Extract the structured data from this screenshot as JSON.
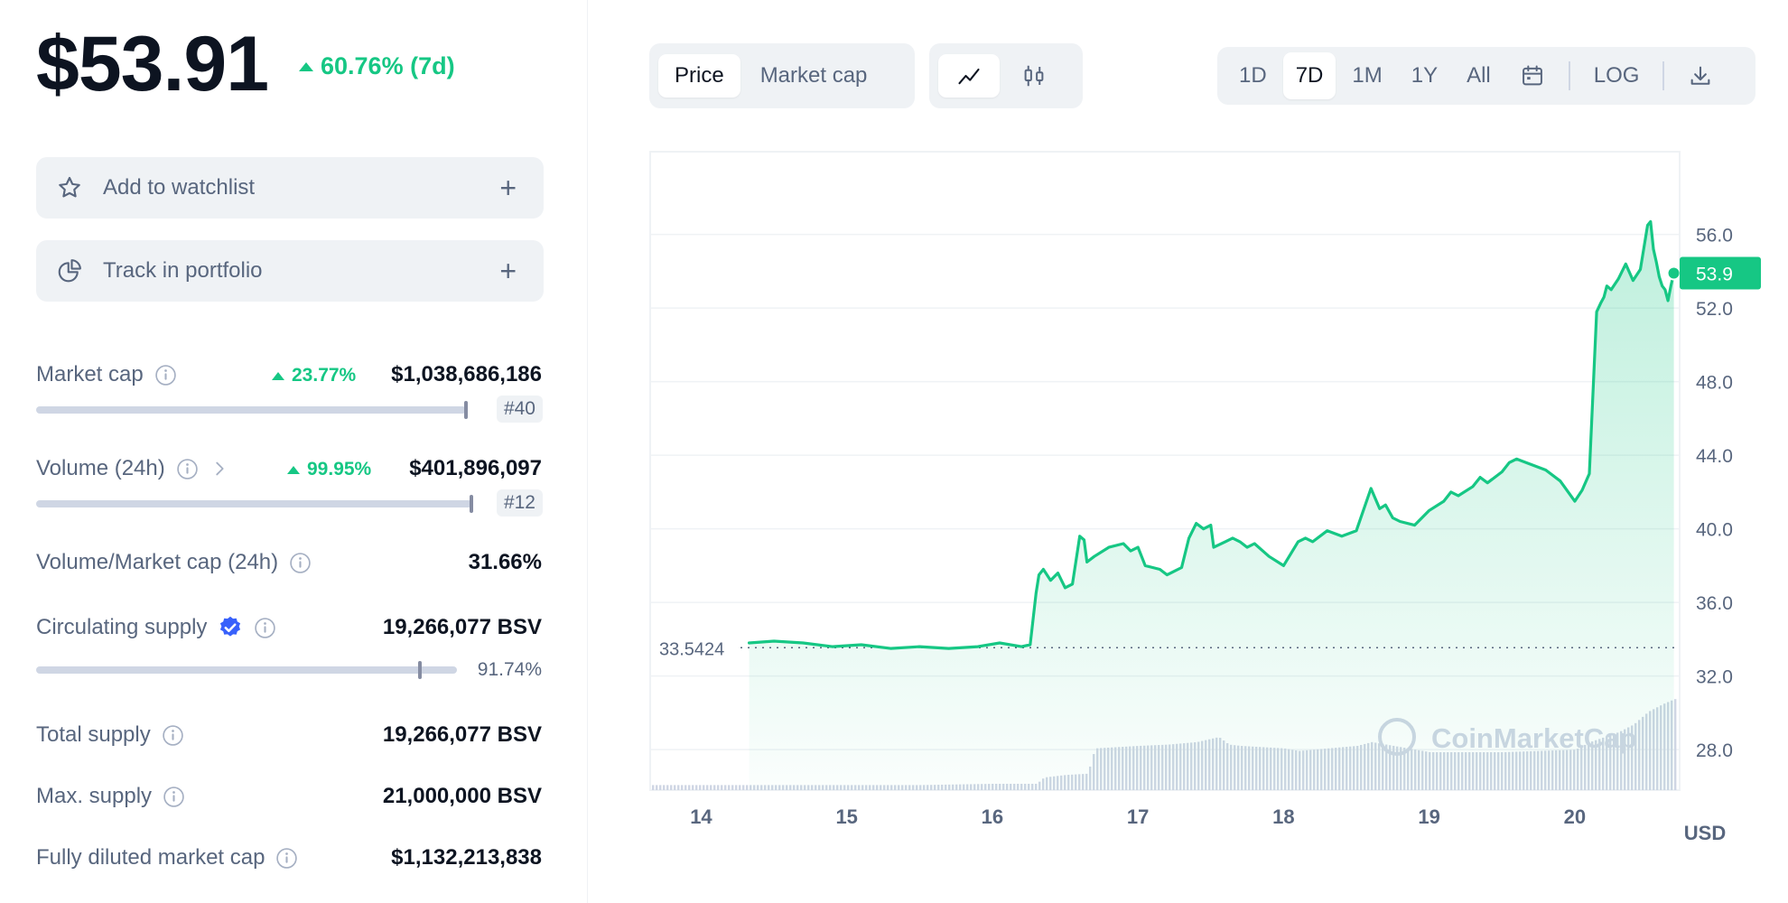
{
  "header": {
    "price": "$53.91",
    "change": "60.76% (7d)"
  },
  "actions": {
    "watchlist_label": "Add to watchlist",
    "portfolio_label": "Track in portfolio",
    "plus": "+"
  },
  "stats": {
    "market_cap": {
      "label": "Market cap",
      "change": "23.77%",
      "value": "$1,038,686,186",
      "rank": "#40",
      "bar_fraction": 0.92
    },
    "volume": {
      "label": "Volume (24h)",
      "change": "99.95%",
      "value": "$401,896,097",
      "rank": "#12",
      "bar_fraction": 0.93
    },
    "vol_mcap": {
      "label": "Volume/Market cap (24h)",
      "value": "31.66%"
    },
    "circ_supply": {
      "label": "Circulating supply",
      "value": "19,266,077 BSV",
      "percent": "91.74%",
      "bar_fraction": 0.9174
    },
    "total_supply": {
      "label": "Total supply",
      "value": "19,266,077 BSV"
    },
    "max_supply": {
      "label": "Max. supply",
      "value": "21,000,000 BSV"
    },
    "fdmc": {
      "label": "Fully diluted market cap",
      "value": "$1,132,213,838"
    }
  },
  "controls": {
    "type_tabs": [
      "Price",
      "Market cap"
    ],
    "type_active": 0,
    "range_tabs": [
      "1D",
      "7D",
      "1M",
      "1Y",
      "All"
    ],
    "range_active": 1,
    "log_label": "LOG"
  },
  "colors": {
    "up": "#16c784",
    "text": "#0d1421",
    "muted": "#58667e",
    "panel": "#eff2f5",
    "line": "#16c784"
  },
  "chart_data": {
    "type": "line",
    "title": "",
    "currency_label": "USD",
    "watermark": "CoinMarketCap",
    "open_price_label": "33.5424",
    "current_price_label": "53.9",
    "x_ticks": [
      "14",
      "15",
      "16",
      "17",
      "18",
      "19",
      "20"
    ],
    "y_ticks": [
      "56.0",
      "52.0",
      "48.0",
      "44.0",
      "40.0",
      "36.0",
      "32.0",
      "28.0"
    ],
    "y_tick_values": [
      56,
      52,
      48,
      44,
      40,
      36,
      32,
      28
    ],
    "ylim": [
      25.8,
      60.5
    ],
    "xlim": [
      13.65,
      20.72
    ],
    "open_price": 33.5424,
    "current_price": 53.9,
    "series": [
      {
        "name": "Price",
        "x": [
          14.33,
          14.5,
          14.7,
          14.9,
          15.1,
          15.3,
          15.5,
          15.7,
          15.9,
          16.05,
          16.2,
          16.26,
          16.3,
          16.32,
          16.35,
          16.4,
          16.45,
          16.5,
          16.55,
          16.6,
          16.63,
          16.65,
          16.7,
          16.8,
          16.9,
          16.95,
          17.0,
          17.05,
          17.15,
          17.2,
          17.3,
          17.35,
          17.4,
          17.45,
          17.5,
          17.52,
          17.6,
          17.65,
          17.7,
          17.75,
          17.8,
          17.9,
          18.0,
          18.1,
          18.15,
          18.2,
          18.3,
          18.4,
          18.5,
          18.6,
          18.66,
          18.7,
          18.75,
          18.8,
          18.9,
          19.0,
          19.1,
          19.15,
          19.2,
          19.3,
          19.35,
          19.4,
          19.5,
          19.55,
          19.6,
          19.7,
          19.8,
          19.9,
          20.0,
          20.05,
          20.1,
          20.15,
          20.18,
          20.2,
          20.22,
          20.25,
          20.3,
          20.35,
          20.4,
          20.45,
          20.5,
          20.52,
          20.54,
          20.56,
          20.58,
          20.6,
          20.62,
          20.64,
          20.66,
          20.68
        ],
        "y": [
          33.8,
          33.9,
          33.8,
          33.6,
          33.7,
          33.5,
          33.6,
          33.5,
          33.6,
          33.8,
          33.6,
          33.7,
          36.5,
          37.5,
          37.8,
          37.2,
          37.6,
          36.8,
          37.0,
          39.6,
          39.4,
          38.2,
          38.5,
          39.0,
          39.2,
          38.8,
          39.0,
          38.0,
          37.8,
          37.5,
          37.9,
          39.5,
          40.3,
          40.0,
          40.2,
          39.0,
          39.3,
          39.5,
          39.3,
          39.0,
          39.2,
          38.5,
          38.0,
          39.3,
          39.5,
          39.3,
          39.9,
          39.6,
          39.9,
          42.2,
          41.1,
          41.3,
          40.6,
          40.4,
          40.2,
          41.0,
          41.5,
          42.0,
          41.8,
          42.3,
          42.8,
          42.5,
          43.1,
          43.6,
          43.8,
          43.5,
          43.2,
          42.6,
          41.5,
          42.1,
          43.0,
          51.8,
          52.3,
          52.6,
          53.2,
          53.0,
          53.6,
          54.4,
          53.5,
          54.1,
          56.5,
          56.7,
          55.2,
          54.5,
          53.7,
          53.2,
          53.0,
          52.4,
          53.2,
          53.9
        ]
      },
      {
        "name": "Volume",
        "x": [
          13.65,
          14.5,
          15.5,
          16.0,
          16.3,
          16.35,
          16.5,
          16.65,
          16.7,
          17.0,
          17.2,
          17.4,
          17.55,
          17.62,
          17.7,
          18.0,
          18.1,
          18.2,
          18.5,
          18.6,
          18.8,
          19.0,
          19.5,
          20.0,
          20.1,
          20.2,
          20.3,
          20.4,
          20.5,
          20.6,
          20.68
        ],
        "v": [
          0.04,
          0.04,
          0.04,
          0.05,
          0.05,
          0.1,
          0.12,
          0.13,
          0.33,
          0.35,
          0.36,
          0.38,
          0.42,
          0.36,
          0.35,
          0.33,
          0.31,
          0.32,
          0.35,
          0.38,
          0.34,
          0.3,
          0.3,
          0.32,
          0.38,
          0.42,
          0.46,
          0.52,
          0.62,
          0.68,
          0.72
        ]
      }
    ]
  }
}
